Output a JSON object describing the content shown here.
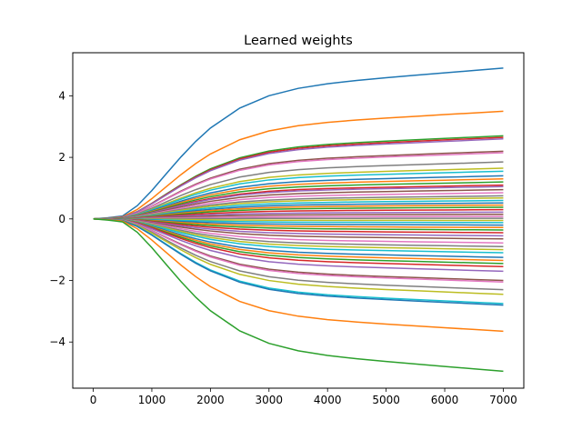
{
  "chart_data": {
    "type": "line",
    "title": "Learned weights",
    "xlabel": "",
    "ylabel": "",
    "xlim": [
      -350,
      7350
    ],
    "ylim": [
      -5.5,
      5.4
    ],
    "x_ticks": [
      0,
      1000,
      2000,
      3000,
      4000,
      5000,
      6000,
      7000
    ],
    "y_ticks": [
      -4,
      -2,
      0,
      2,
      4
    ],
    "x_tick_labels": [
      "0",
      "1000",
      "2000",
      "3000",
      "4000",
      "5000",
      "6000",
      "7000"
    ],
    "y_tick_labels": [
      "−4",
      "−2",
      "0",
      "2",
      "4"
    ],
    "grid": false,
    "legend": "none",
    "x": [
      0,
      250,
      500,
      750,
      1000,
      1250,
      1500,
      1750,
      2000,
      2500,
      3000,
      3500,
      4000,
      4500,
      5000,
      5500,
      6000,
      6500,
      7000
    ],
    "series_final_values": [
      4.9,
      3.5,
      2.7,
      2.65,
      2.6,
      2.2,
      2.15,
      1.85,
      1.65,
      1.55,
      1.4,
      1.3,
      1.2,
      1.1,
      1.05,
      0.95,
      0.85,
      0.75,
      0.68,
      0.6,
      0.52,
      0.45,
      0.38,
      0.3,
      0.22,
      0.15,
      0.08,
      0.02,
      -0.05,
      -0.12,
      -0.2,
      -0.28,
      -0.36,
      -0.45,
      -0.55,
      -0.65,
      -0.78,
      -0.9,
      -1.0,
      -1.1,
      -1.25,
      -1.35,
      -1.45,
      -1.55,
      -1.7,
      -2.0,
      -2.05,
      -2.3,
      -2.45,
      -2.75,
      -2.8,
      -3.65,
      -4.95
    ],
    "colors": [
      "#1f77b4",
      "#ff7f0e",
      "#2ca02c",
      "#d62728",
      "#9467bd",
      "#8c564b",
      "#e377c2",
      "#7f7f7f",
      "#bcbd22",
      "#17becf"
    ]
  }
}
